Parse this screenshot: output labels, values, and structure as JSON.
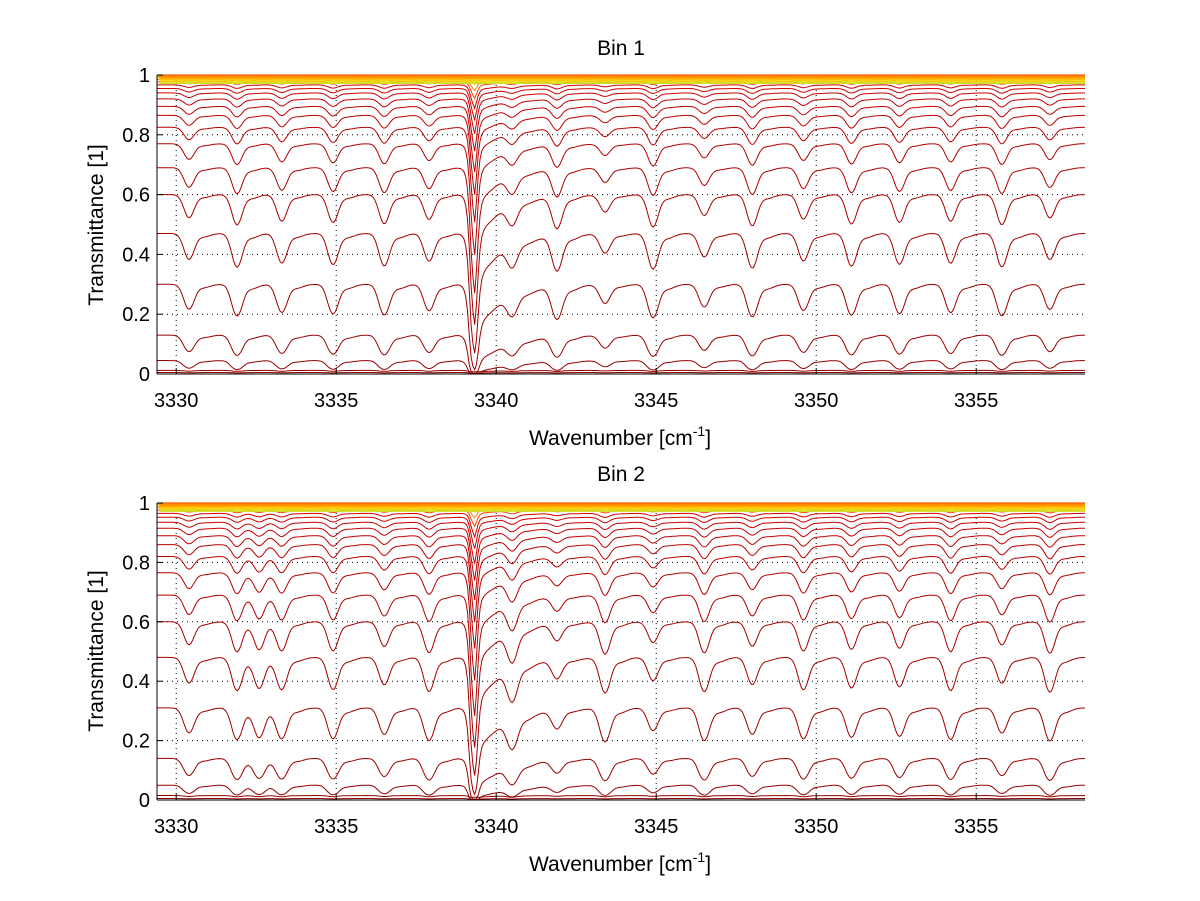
{
  "chart_data": [
    {
      "type": "line",
      "title": "Bin 1",
      "xlabel": "Wavenumber [cm",
      "xlabel_sup": "-1",
      "xlabel_end": "]",
      "ylabel": "Transmittance [1]",
      "xlim": [
        3329.4,
        3358.4
      ],
      "ylim": [
        0,
        1
      ],
      "xticks": [
        3330,
        3335,
        3340,
        3345,
        3350,
        3355
      ],
      "yticks": [
        0,
        0.2,
        0.4,
        0.6,
        0.8,
        1
      ],
      "xtick_labels": [
        "3330",
        "3335",
        "3340",
        "3345",
        "3350",
        "3355"
      ],
      "ytick_labels": [
        "0",
        "0.2",
        "0.4",
        "0.6",
        "0.8",
        "1"
      ],
      "grid": true,
      "line_baselines": [
        0.005,
        0.012,
        0.045,
        0.13,
        0.3,
        0.47,
        0.6,
        0.69,
        0.77,
        0.825,
        0.865,
        0.895,
        0.92,
        0.94,
        0.955,
        0.967,
        0.977,
        0.985,
        0.991,
        0.995,
        0.998
      ],
      "strong_line": 3339.3,
      "absorption_lines": [
        3330.4,
        3331.9,
        3333.3,
        3334.9,
        3336.5,
        3337.9,
        3339.3,
        3340.5,
        3341.9,
        3343.4,
        3344.9,
        3346.5,
        3348.0,
        3349.6,
        3351.1,
        3352.6,
        3354.2,
        3355.8,
        3357.3
      ],
      "colors": [
        "#8b0000",
        "#d40000",
        "#ff5a00",
        "#ffa000",
        "#ffd200",
        "#c8e020"
      ]
    },
    {
      "type": "line",
      "title": "Bin 2",
      "xlabel": "Wavenumber [cm",
      "xlabel_sup": "-1",
      "xlabel_end": "]",
      "ylabel": "Transmittance [1]",
      "xlim": [
        3329.4,
        3358.4
      ],
      "ylim": [
        0,
        1
      ],
      "xticks": [
        3330,
        3335,
        3340,
        3345,
        3350,
        3355
      ],
      "yticks": [
        0,
        0.2,
        0.4,
        0.6,
        0.8,
        1
      ],
      "xtick_labels": [
        "3330",
        "3335",
        "3340",
        "3345",
        "3350",
        "3355"
      ],
      "ytick_labels": [
        "0",
        "0.2",
        "0.4",
        "0.6",
        "0.8",
        "1"
      ],
      "grid": true,
      "line_baselines": [
        0.005,
        0.015,
        0.05,
        0.14,
        0.31,
        0.48,
        0.6,
        0.69,
        0.765,
        0.82,
        0.86,
        0.89,
        0.915,
        0.935,
        0.952,
        0.965,
        0.976,
        0.985,
        0.991,
        0.995,
        0.998
      ],
      "strong_line": 3339.3,
      "absorption_lines": [
        3330.4,
        3331.9,
        3332.6,
        3333.3,
        3334.9,
        3336.5,
        3337.9,
        3339.3,
        3340.5,
        3341.9,
        3343.4,
        3344.9,
        3346.5,
        3348.0,
        3349.6,
        3351.1,
        3352.6,
        3354.2,
        3355.8,
        3357.3
      ],
      "colors": [
        "#8b0000",
        "#d40000",
        "#ff5a00",
        "#ffa000",
        "#ffd200",
        "#c8e020"
      ]
    }
  ]
}
